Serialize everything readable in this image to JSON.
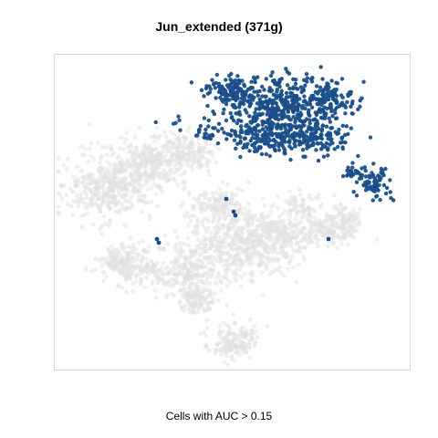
{
  "chart_data": {
    "type": "scatter",
    "title": "Jun_extended (371g)",
    "caption": "Cells with AUC > 0.15",
    "xlabel": "",
    "ylabel": "",
    "axes_visible": false,
    "grid": false,
    "legend": "none",
    "frame_color": "#d9d9d9",
    "series": [
      {
        "role": "cells below threshold",
        "color": "#e2e2e2",
        "point_count": 2600
      },
      {
        "role": "cells above threshold",
        "color": "#1a4f8a",
        "point_count": 1020
      }
    ]
  }
}
